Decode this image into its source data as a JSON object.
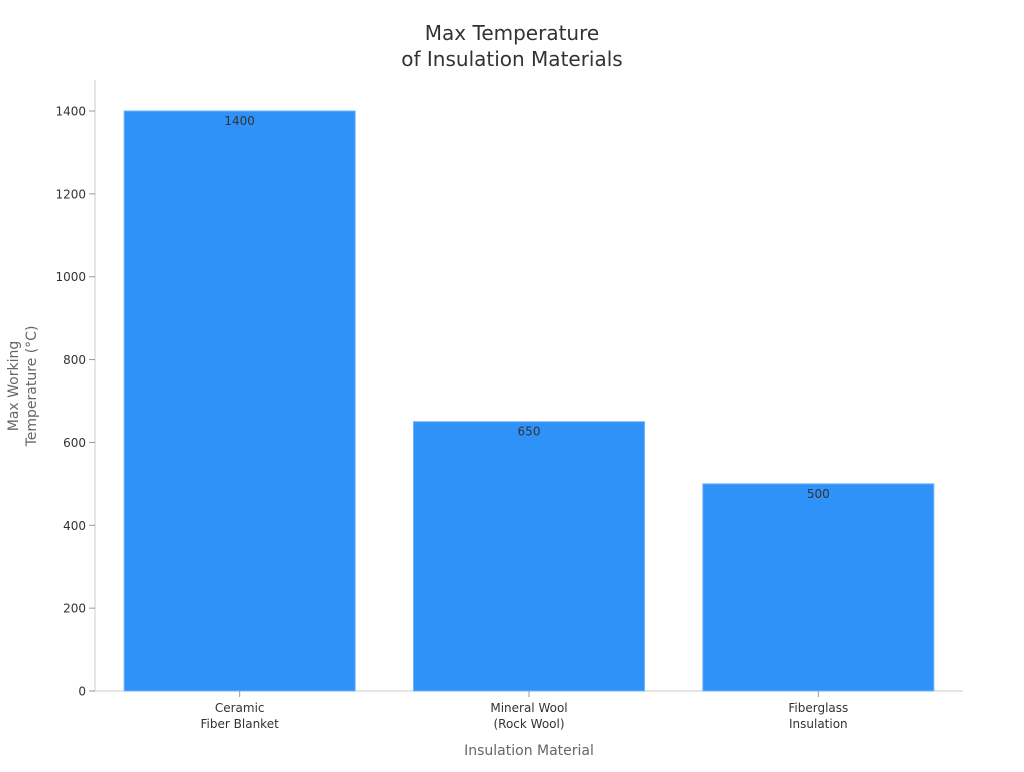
{
  "chart_data": {
    "type": "bar",
    "title": [
      "Max Temperature",
      "of Insulation Materials"
    ],
    "xlabel": "Insulation Material",
    "ylabel": [
      "Max Working",
      "Temperature (°C)"
    ],
    "categories": [
      [
        "Ceramic",
        "Fiber Blanket"
      ],
      [
        "Mineral Wool",
        "(Rock Wool)"
      ],
      [
        "Fiberglass",
        "Insulation"
      ]
    ],
    "values": [
      1400,
      650,
      500
    ],
    "data_labels": [
      "1400",
      "650",
      "500"
    ],
    "ylim": [
      0,
      1470
    ],
    "yticks": [
      0,
      200,
      400,
      600,
      800,
      1000,
      1200,
      1400
    ],
    "grid": false,
    "colors": {
      "bar": "#2f92f8",
      "bar_edge": "#6fb3fb",
      "axis": "#cccccc",
      "text": "#333333",
      "label": "#666666"
    }
  }
}
